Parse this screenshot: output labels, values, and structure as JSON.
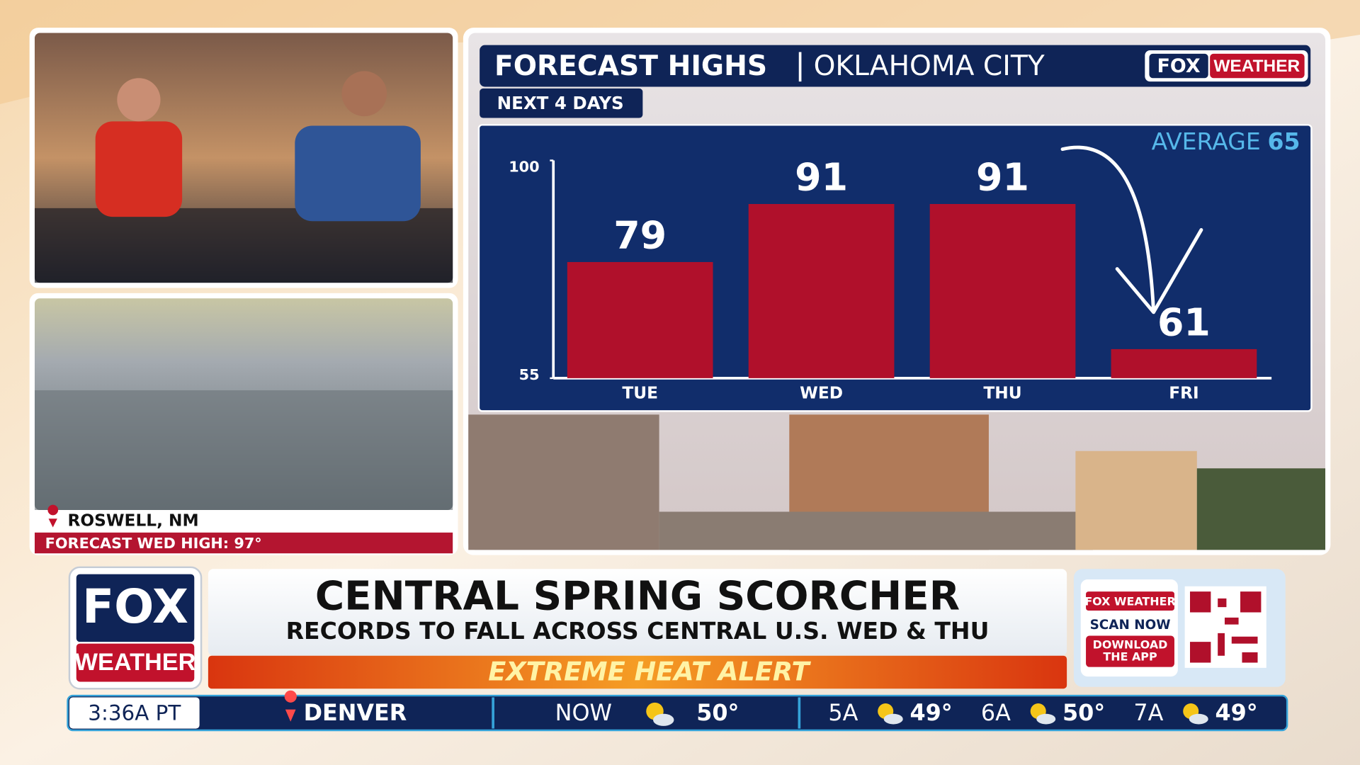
{
  "chart_data": {
    "type": "bar",
    "title": "FORECAST HIGHS",
    "subtitle": "OKLAHOMA CITY",
    "period": "NEXT 4 DAYS",
    "categories": [
      "TUE",
      "WED",
      "THU",
      "FRI"
    ],
    "values": [
      79,
      91,
      91,
      61
    ],
    "color": "#b0102b",
    "ylim": [
      55,
      100
    ],
    "yticks": [
      55,
      100
    ],
    "average": {
      "label": "AVERAGE",
      "value": 65
    }
  },
  "brand": {
    "chart_logo_1": "FOX",
    "chart_logo_2": "WEATHER"
  },
  "inset": {
    "location": "ROSWELL, NM",
    "forecast": "FORECAST WED HIGH: 97°"
  },
  "lower_third": {
    "logo_1": "FOX",
    "logo_2": "WEATHER",
    "headline": "CENTRAL SPRING SCORCHER",
    "subhead": "RECORDS TO FALL ACROSS CENTRAL U.S. WED & THU",
    "alert": "EXTREME HEAT ALERT"
  },
  "qr_box": {
    "brand": "FOX WEATHER",
    "cta": "SCAN NOW",
    "download_1": "DOWNLOAD",
    "download_2": "THE APP"
  },
  "ticker": {
    "time": "3:36A PT",
    "city": "DENVER",
    "now_label": "NOW",
    "now_temp": "50°",
    "hours": [
      {
        "time": "5A",
        "temp": "49°"
      },
      {
        "time": "6A",
        "temp": "50°"
      },
      {
        "time": "7A",
        "temp": "49°"
      }
    ]
  }
}
